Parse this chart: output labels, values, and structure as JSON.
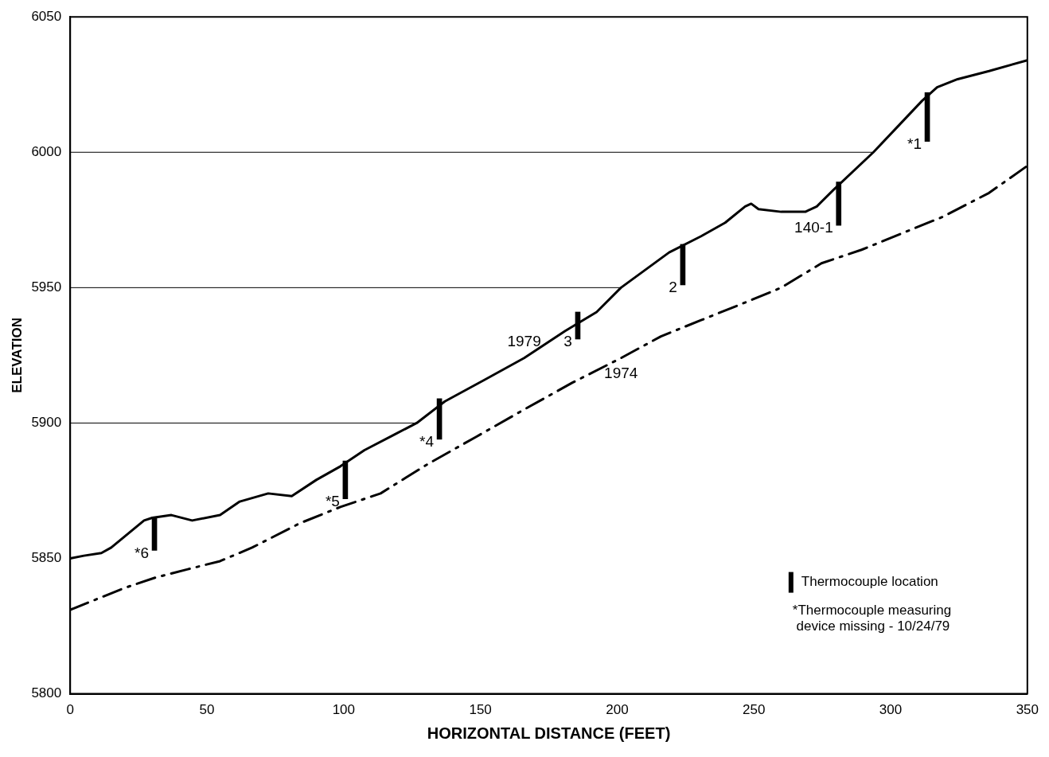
{
  "chart_data": {
    "type": "line",
    "xlabel": "HORIZONTAL DISTANCE (FEET)",
    "ylabel": "ELEVATION",
    "xlim": [
      0,
      350
    ],
    "xticks": [
      0,
      50,
      100,
      150,
      200,
      250,
      300,
      350
    ],
    "ylim": [
      5800,
      6050
    ],
    "yticks": [
      5800,
      5850,
      5900,
      5950,
      6000,
      6050
    ],
    "grid": false,
    "legend": "bottom right",
    "series": [
      {
        "color": "#000000",
        "line_style": "solid",
        "x": [
          0,
          5,
          11.4,
          15,
          21,
          27,
          30,
          37,
          44.6,
          54.8,
          62,
          72.4,
          81,
          90,
          98.8,
          107.6,
          119,
          126.7,
          137,
          151.6,
          166,
          181,
          192.5,
          201.4,
          219,
          230.7,
          239.5,
          246.8,
          249,
          251.7,
          260,
          268.8,
          273,
          279,
          293.7,
          304,
          311.5,
          317,
          324.5,
          336,
          350
        ],
        "values": [
          5850,
          5851,
          5852,
          5854,
          5859,
          5864,
          5865,
          5866,
          5864,
          5866,
          5871,
          5874,
          5873,
          5879,
          5884,
          5890,
          5896,
          5900,
          5908,
          5916,
          5924,
          5934,
          5941,
          5950,
          5963,
          5969,
          5974,
          5980,
          5981,
          5979,
          5978,
          5978,
          5980,
          5986,
          6000,
          6011,
          6019,
          6024,
          6027,
          6030,
          6034
        ]
      },
      {
        "color": "#000000",
        "line_style": "dashed",
        "x": [
          0,
          19.6,
          31.4,
          43,
          54.8,
          66.5,
          84,
          98.8,
          113.5,
          131,
          148.6,
          166,
          183.8,
          201.4,
          216,
          230.7,
          248,
          260,
          274.7,
          289.4,
          304,
          318.7,
          336,
          350
        ],
        "values": [
          5831,
          5839,
          5843,
          5846,
          5849,
          5854,
          5863,
          5869,
          5874,
          5885,
          5895,
          5905,
          5915,
          5924,
          5932,
          5938,
          5945,
          5950,
          5959,
          5964,
          5970,
          5976,
          5985,
          5995
        ]
      },
      {
        "type": "bar",
        "name": "Thermocouple location",
        "color": "#000000",
        "x": [
          30.8,
          100.6,
          135,
          185.6,
          224,
          281,
          313.4
        ],
        "base": [
          5853,
          5872,
          5894,
          5931,
          5951,
          5973,
          6004
        ],
        "values": [
          12,
          14,
          15,
          10,
          15,
          16,
          18
        ]
      }
    ],
    "ref_lines": [
      {
        "axis": "y",
        "value": 5900
      },
      {
        "axis": "y",
        "value": 5950
      },
      {
        "axis": "y",
        "value": 6000
      }
    ],
    "annotations": [
      {
        "text": "*6",
        "x": 30.8,
        "y": 5853
      },
      {
        "text": "*5",
        "x": 100.6,
        "y": 5872
      },
      {
        "text": "*4",
        "x": 135,
        "y": 5894
      },
      {
        "text": "3",
        "x": 185.6,
        "y": 5931
      },
      {
        "text": "2",
        "x": 224,
        "y": 5951
      },
      {
        "text": "140-1",
        "x": 281,
        "y": 5973
      },
      {
        "text": "*1",
        "x": 313.4,
        "y": 6004
      },
      {
        "text": "1979",
        "x": 166,
        "y": 5924
      },
      {
        "text": "1974",
        "x": 201.4,
        "y": 5924
      },
      "*Thermocouple measuring device missing - 10/24/79"
    ]
  }
}
